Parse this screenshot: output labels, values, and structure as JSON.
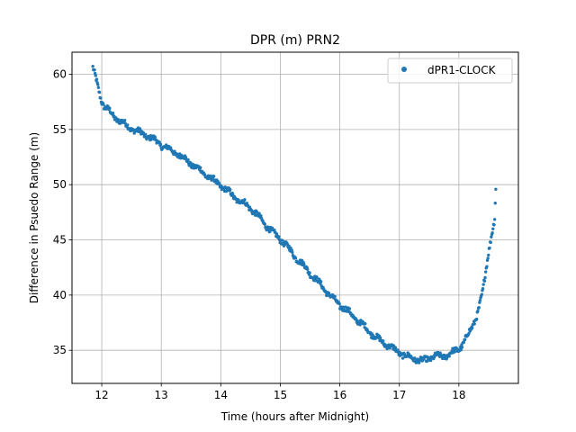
{
  "chart_data": {
    "type": "scatter",
    "title": "DPR (m) PRN2",
    "xlabel": "Time (hours after Midnight)",
    "ylabel": "Difference in Psuedo Range (m)",
    "xlim": [
      11.5,
      19.0
    ],
    "ylim": [
      32.0,
      62.0
    ],
    "xticks": [
      12,
      13,
      14,
      15,
      16,
      17,
      18
    ],
    "yticks": [
      35,
      40,
      45,
      50,
      55,
      60
    ],
    "grid": true,
    "legend": "top-right",
    "series": [
      {
        "name": "dPR1-CLOCK",
        "color": "#1f77b4",
        "x": [
          11.85,
          11.9,
          11.95,
          12.0,
          12.05,
          12.1,
          12.2,
          12.3,
          12.4,
          12.5,
          12.6,
          12.7,
          12.8,
          12.9,
          13.0,
          13.1,
          13.2,
          13.3,
          13.4,
          13.5,
          13.6,
          13.7,
          13.8,
          13.9,
          14.0,
          14.1,
          14.2,
          14.3,
          14.4,
          14.5,
          14.6,
          14.7,
          14.8,
          14.9,
          15.0,
          15.1,
          15.2,
          15.3,
          15.4,
          15.5,
          15.6,
          15.7,
          15.8,
          15.9,
          16.0,
          16.1,
          16.2,
          16.3,
          16.4,
          16.5,
          16.6,
          16.7,
          16.8,
          16.9,
          17.0,
          17.1,
          17.2,
          17.3,
          17.4,
          17.5,
          17.6,
          17.7,
          17.8,
          17.9,
          18.0,
          18.1,
          18.2,
          18.3,
          18.4,
          18.45,
          18.5,
          18.55,
          18.6,
          18.62
        ],
        "y": [
          60.5,
          59.6,
          58.6,
          57.6,
          57.0,
          56.8,
          56.2,
          55.8,
          55.4,
          55.1,
          54.8,
          54.6,
          54.3,
          54.0,
          53.6,
          53.3,
          53.0,
          52.7,
          52.3,
          51.9,
          51.5,
          51.1,
          50.7,
          50.3,
          49.9,
          49.5,
          49.0,
          48.6,
          48.3,
          47.9,
          47.3,
          46.7,
          46.1,
          45.5,
          45.1,
          44.5,
          43.8,
          43.2,
          42.6,
          42.0,
          41.4,
          40.8,
          40.2,
          39.6,
          39.1,
          38.7,
          38.2,
          37.7,
          37.2,
          36.7,
          36.2,
          35.8,
          35.5,
          35.1,
          34.8,
          34.5,
          34.3,
          34.2,
          34.0,
          34.3,
          34.5,
          34.4,
          34.6,
          34.8,
          35.1,
          35.9,
          36.8,
          38.2,
          40.2,
          42.0,
          44.0,
          45.6,
          46.8,
          49.6
        ]
      }
    ]
  }
}
